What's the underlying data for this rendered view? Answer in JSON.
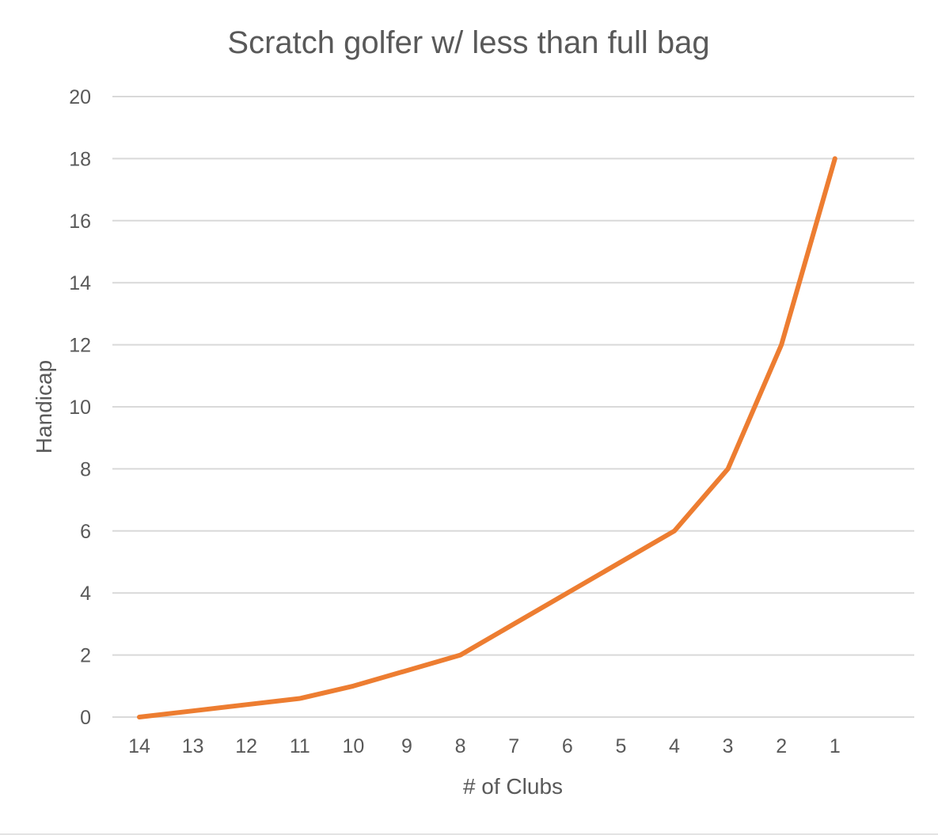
{
  "chart_data": {
    "type": "line",
    "title": "Scratch golfer w/ less than full bag",
    "xlabel": "# of Clubs",
    "ylabel": "Handicap",
    "categories": [
      "14",
      "13",
      "12",
      "11",
      "10",
      "9",
      "8",
      "7",
      "6",
      "5",
      "4",
      "3",
      "2",
      "1"
    ],
    "series": [
      {
        "values": [
          0,
          0.2,
          0.4,
          0.6,
          1,
          1.5,
          2,
          3,
          4,
          5,
          6,
          8,
          12,
          18
        ],
        "color": "#ED7D31"
      }
    ],
    "ylim": [
      0,
      20
    ],
    "y_ticks": [
      "0",
      "2",
      "4",
      "6",
      "8",
      "10",
      "12",
      "14",
      "16",
      "18",
      "20"
    ],
    "grid": true,
    "legend": "none"
  }
}
